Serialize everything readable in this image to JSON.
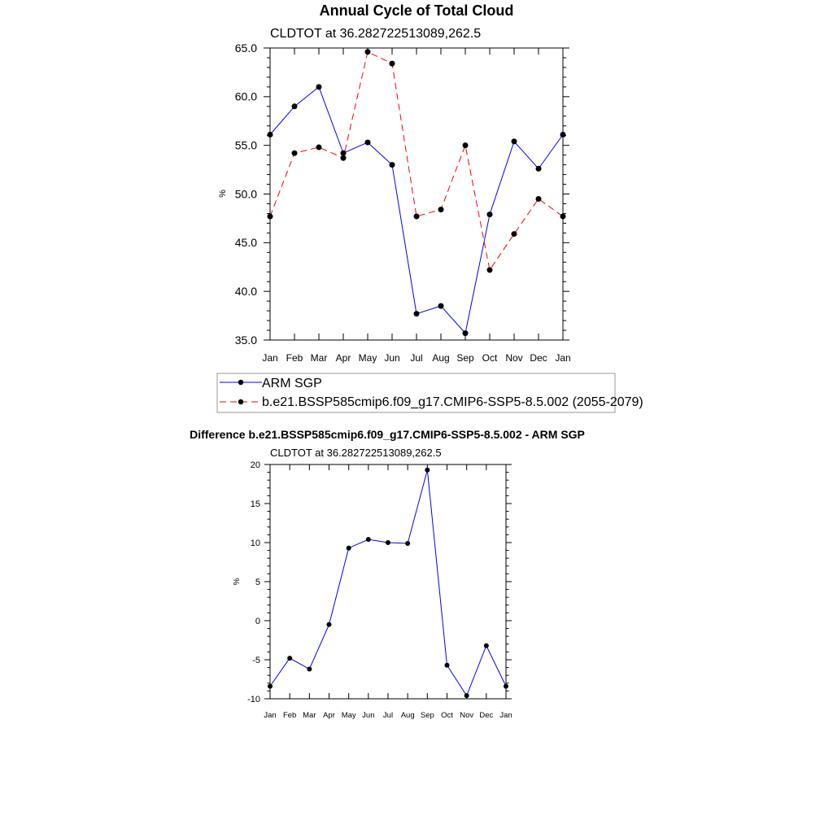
{
  "chart_data": [
    {
      "type": "line",
      "title": "Annual Cycle of Total Cloud",
      "subtitle": "CLDTOT at 36.282722513089,262.5",
      "ylabel": "%",
      "xlabel": "",
      "categories": [
        "Jan",
        "Feb",
        "Mar",
        "Apr",
        "May",
        "Jun",
        "Jul",
        "Aug",
        "Sep",
        "Oct",
        "Nov",
        "Dec",
        "Jan"
      ],
      "ylim": [
        35,
        65
      ],
      "yticks": [
        35,
        40,
        45,
        50,
        55,
        60,
        65
      ],
      "ytick_labels": [
        "35.0",
        "40.0",
        "45.0",
        "50.0",
        "55.0",
        "60.0",
        "65.0"
      ],
      "series": [
        {
          "name": "ARM SGP",
          "color": "#0000ff",
          "dash": "solid",
          "values": [
            56.1,
            59.0,
            61.0,
            54.2,
            55.3,
            53.0,
            37.7,
            38.5,
            35.7,
            47.9,
            55.4,
            52.6,
            56.1
          ]
        },
        {
          "name": "b.e21.BSSP585cmip6.f09_g17.CMIP6-SSP5-8.5.002 (2055-2079)",
          "color": "#ff0000",
          "dash": "dashed",
          "values": [
            47.7,
            54.2,
            54.8,
            53.7,
            64.6,
            63.4,
            47.7,
            48.4,
            55.0,
            42.2,
            45.9,
            49.5,
            47.7
          ]
        }
      ],
      "legend": "bottom"
    },
    {
      "type": "line",
      "title": "Difference b.e21.BSSP585cmip6.f09_g17.CMIP6-SSP5-8.5.002 - ARM SGP",
      "subtitle": "CLDTOT at 36.282722513089,262.5",
      "ylabel": "%",
      "xlabel": "",
      "categories": [
        "Jan",
        "Feb",
        "Mar",
        "Apr",
        "May",
        "Jun",
        "Jul",
        "Aug",
        "Sep",
        "Oct",
        "Nov",
        "Dec",
        "Jan"
      ],
      "ylim": [
        -10,
        20
      ],
      "yticks": [
        -10,
        -5,
        0,
        5,
        10,
        15,
        20
      ],
      "ytick_labels": [
        "-10",
        "-5",
        "0",
        "5",
        "10",
        "15",
        "20"
      ],
      "series": [
        {
          "name": "Difference",
          "color": "#0000ff",
          "dash": "solid",
          "values": [
            -8.4,
            -4.8,
            -6.2,
            -0.5,
            9.3,
            10.4,
            10.0,
            9.9,
            19.3,
            -5.7,
            -9.6,
            -3.2,
            -8.4
          ]
        }
      ]
    }
  ]
}
